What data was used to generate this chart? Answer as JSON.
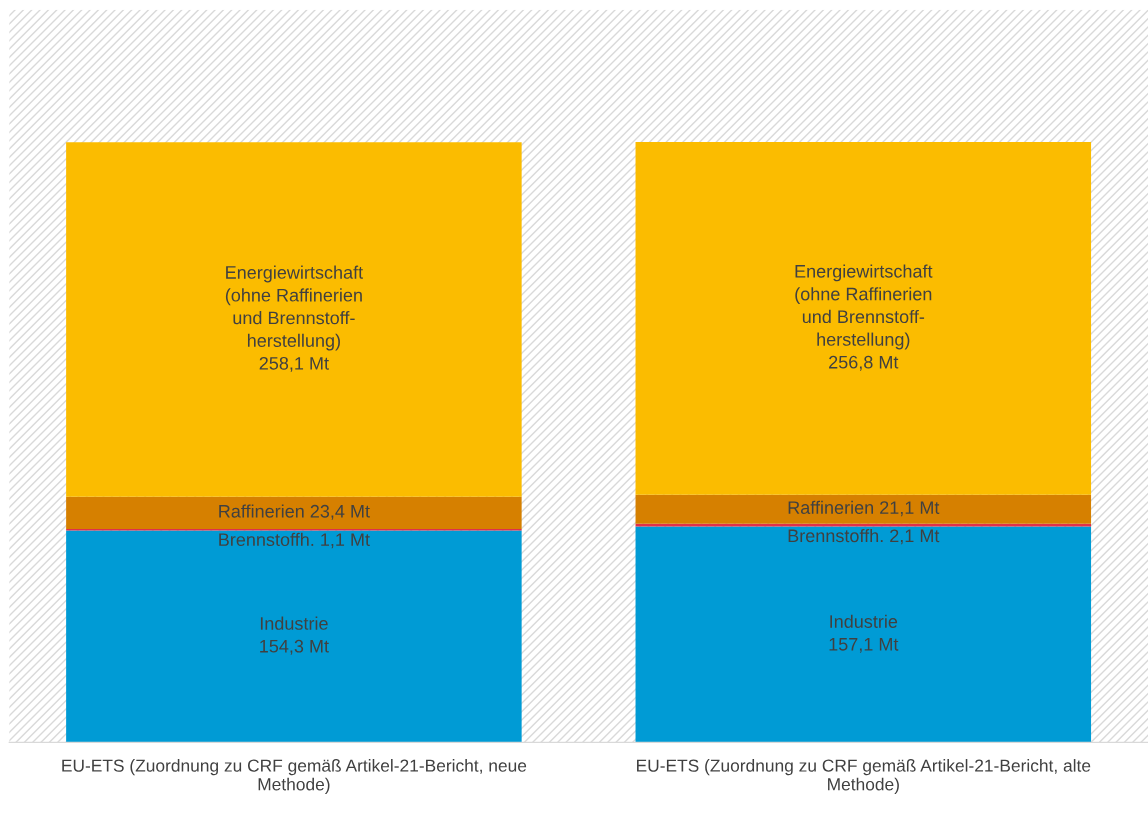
{
  "chart_data": {
    "type": "bar",
    "stacked": true,
    "categories": [
      "EU-ETS (Zuordnung zu CRF gemäß Artikel-21-Bericht, neue\nMethode)",
      "EU-ETS (Zuordnung zu CRF gemäß Artikel-21-Bericht, alte\nMethode)"
    ],
    "series": [
      {
        "color": "#009bd5",
        "values": [
          154.3,
          157.1
        ],
        "value_labels": [
          "Industrie\n154,3 Mt",
          "Industrie\n157,1 Mt"
        ]
      },
      {
        "color": "#e0304a",
        "values": [
          1.1,
          2.1
        ],
        "value_labels": [
          "Brennstoffh. 1,1 Mt",
          "Brennstoffh. 2,1 Mt"
        ]
      },
      {
        "color": "#d68000",
        "values": [
          23.4,
          21.1
        ],
        "value_labels": [
          "Raffinerien 23,4 Mt",
          "Raffinerien 21,1 Mt"
        ]
      },
      {
        "color": "#fbbc00",
        "values": [
          258.1,
          256.8
        ],
        "value_labels": [
          "Energiewirtschaft\n(ohne Raffinerien\nund Brennstoff-\nherstellung)\n258,1 Mt",
          "Energiewirtschaft\n(ohne Raffinerien\nund Brennstoff-\nherstellung)\n256,8 Mt"
        ]
      }
    ],
    "grid": false,
    "legend": false
  }
}
